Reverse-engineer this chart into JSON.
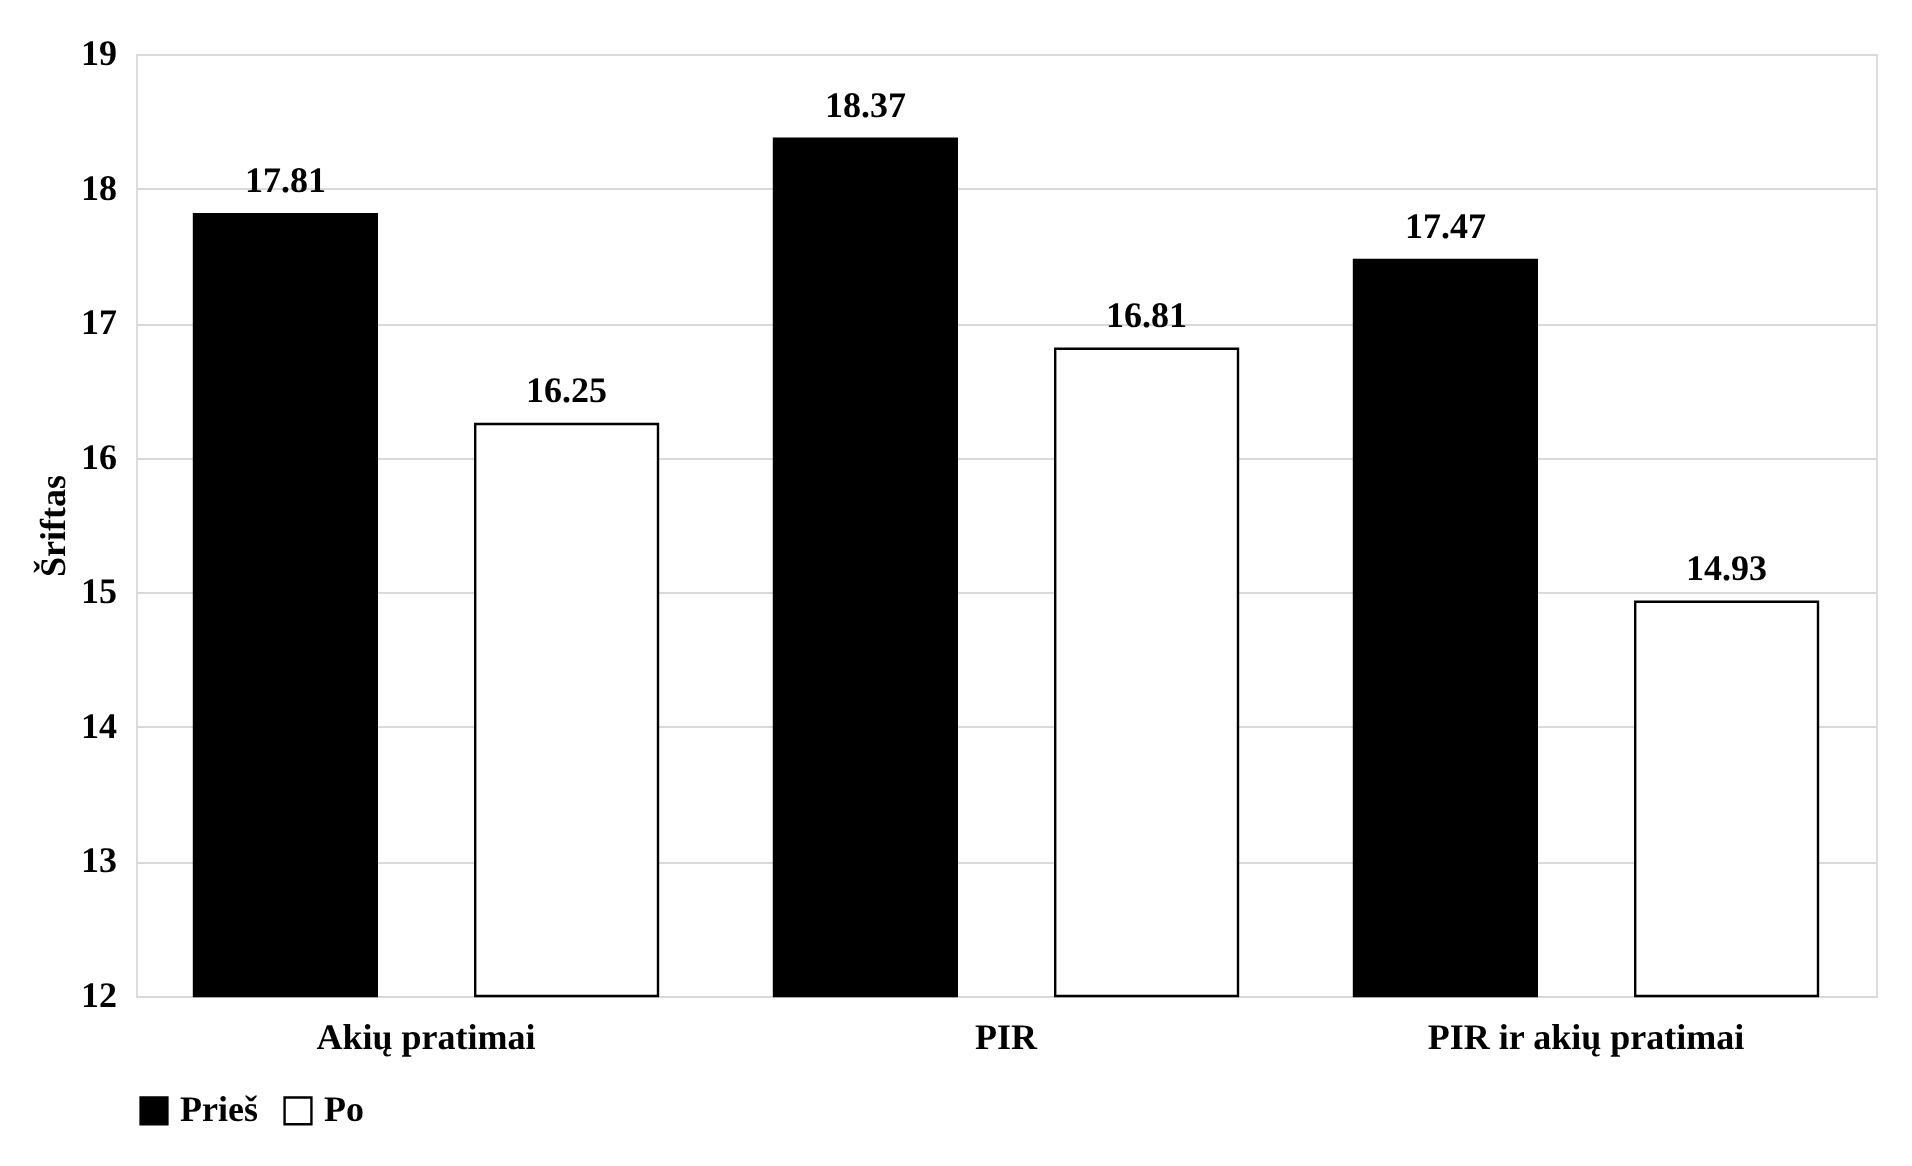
{
  "chart_data": {
    "type": "bar",
    "ylabel": "Šriftas",
    "categories": [
      "Akių pratimai",
      "PIR",
      "PIR ir akių pratimai"
    ],
    "series": [
      {
        "name": "Prieš",
        "color": "#000000",
        "values": [
          17.81,
          18.37,
          17.47
        ]
      },
      {
        "name": "Po",
        "color": "#ffffff",
        "values": [
          16.25,
          16.81,
          14.93
        ]
      }
    ],
    "ylim": [
      12,
      19
    ],
    "yticks": [
      12,
      13,
      14,
      15,
      16,
      17,
      18,
      19
    ],
    "grid": "y",
    "legend": "bottom",
    "data_labels": true
  }
}
